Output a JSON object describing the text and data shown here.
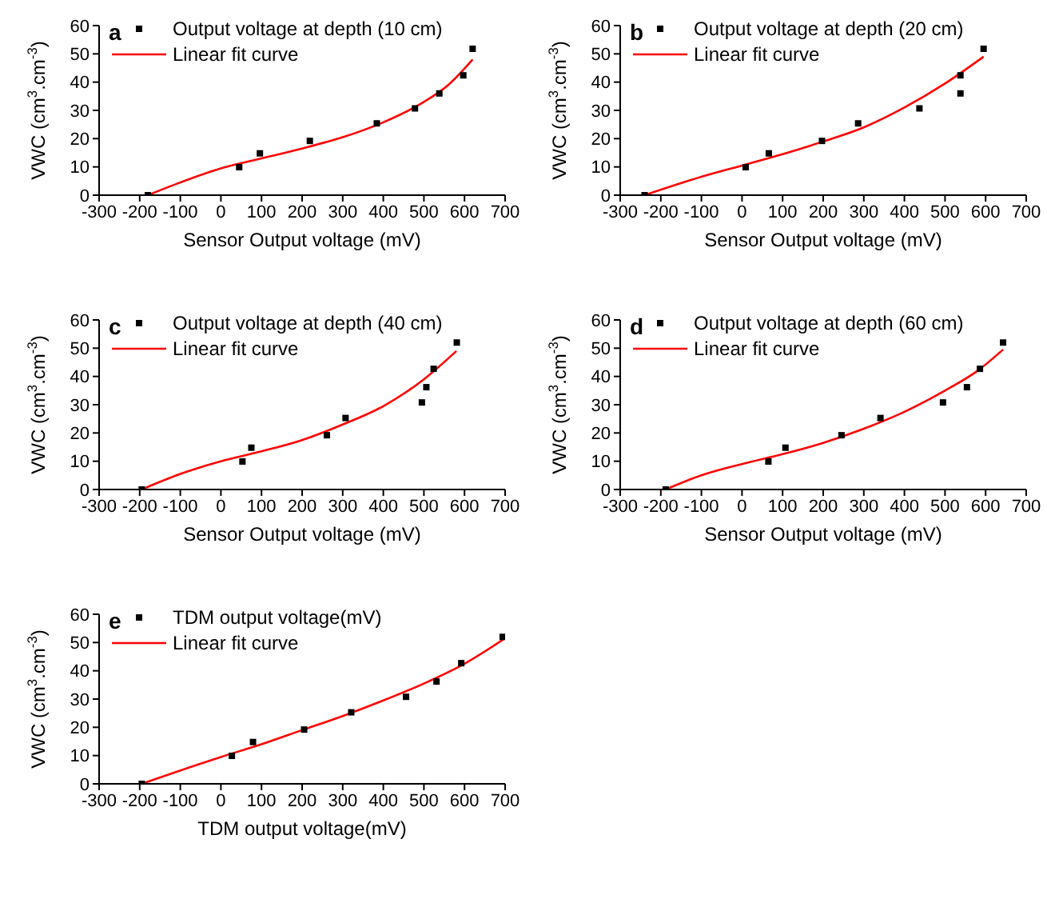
{
  "chart_data": [
    {
      "type": "scatter",
      "annotations": [
        "a"
      ],
      "xlabel": "Sensor Output voltage (mV)",
      "ylabel": "VWC (cm$^{3}$.cm$^{-3}$)",
      "xlim": [
        -300,
        700
      ],
      "xticks": [
        -300,
        -200,
        -100,
        0,
        100,
        200,
        300,
        400,
        500,
        600,
        700
      ],
      "ylim": [
        0,
        60
      ],
      "yticks": [
        0,
        10,
        20,
        30,
        40,
        50,
        60
      ],
      "grid": false,
      "legend": "top left",
      "series": [
        {
          "name": "Output voltage at depth (10 cm)",
          "marker": "square",
          "color": "#000000",
          "x": [
            -180,
            45,
            96,
            219,
            384,
            478,
            538,
            597,
            620
          ],
          "values": [
            0,
            9.9,
            14.8,
            19.2,
            25.4,
            30.7,
            36,
            42.4,
            51.8
          ]
        },
        {
          "name": "Linear fit curve",
          "type": "line",
          "marker": "none",
          "color": "#ff0000",
          "x": [
            -180,
            -100,
            0,
            100,
            200,
            300,
            400,
            500,
            560,
            620
          ],
          "values": [
            0,
            4.5,
            9.5,
            13,
            16.5,
            20.5,
            25.8,
            33,
            39,
            48
          ]
        }
      ]
    },
    {
      "type": "scatter",
      "annotations": [
        "b"
      ],
      "xlabel": "Sensor Output voltage (mV)",
      "ylabel": "VWC (cm$^{3}$.cm$^{-3}$)",
      "xlim": [
        -300,
        700
      ],
      "xticks": [
        -300,
        -200,
        -100,
        0,
        100,
        200,
        300,
        400,
        500,
        600,
        700
      ],
      "ylim": [
        0,
        60
      ],
      "yticks": [
        0,
        10,
        20,
        30,
        40,
        50,
        60
      ],
      "grid": false,
      "legend": "top left",
      "series": [
        {
          "name": "Output voltage at depth (20 cm)",
          "marker": "square",
          "color": "#000000",
          "x": [
            -240,
            9,
            66,
            197,
            286,
            437,
            538,
            538,
            595
          ],
          "values": [
            0,
            9.9,
            14.8,
            19.2,
            25.4,
            30.7,
            36,
            42.4,
            51.8
          ]
        },
        {
          "name": "Linear fit curve",
          "type": "line",
          "marker": "none",
          "color": "#ff0000",
          "x": [
            -240,
            -100,
            0,
            100,
            200,
            300,
            400,
            500,
            595
          ],
          "values": [
            0,
            6.5,
            10.5,
            14.5,
            19,
            24,
            31,
            39.5,
            49
          ]
        }
      ]
    },
    {
      "type": "scatter",
      "annotations": [
        "c"
      ],
      "xlabel": "Sensor Output voltage (mV)",
      "ylabel": "VWC (cm$^{3}$.cm$^{-3}$)",
      "xlim": [
        -300,
        700
      ],
      "xticks": [
        -300,
        -200,
        -100,
        0,
        100,
        200,
        300,
        400,
        500,
        600,
        700
      ],
      "ylim": [
        0,
        60
      ],
      "yticks": [
        0,
        10,
        20,
        30,
        40,
        50,
        60
      ],
      "grid": false,
      "legend": "top left",
      "series": [
        {
          "name": "Output voltage at depth (40 cm)",
          "marker": "square",
          "color": "#000000",
          "x": [
            -195,
            53,
            75,
            261,
            307,
            495,
            506,
            524,
            581
          ],
          "values": [
            0,
            9.9,
            14.8,
            19.2,
            25.3,
            30.8,
            36.2,
            42.7,
            52
          ]
        },
        {
          "name": "Linear fit curve",
          "type": "line",
          "marker": "none",
          "color": "#ff0000",
          "x": [
            -195,
            -100,
            0,
            100,
            200,
            300,
            400,
            500,
            580
          ],
          "values": [
            0,
            5.5,
            10,
            13.5,
            17.5,
            23,
            29.5,
            39,
            49
          ]
        }
      ]
    },
    {
      "type": "scatter",
      "annotations": [
        "d"
      ],
      "xlabel": "Sensor Output voltage (mV)",
      "ylabel": "VWC (cm$^{3}$.cm$^{-3}$)",
      "xlim": [
        -300,
        700
      ],
      "xticks": [
        -300,
        -200,
        -100,
        0,
        100,
        200,
        300,
        400,
        500,
        600,
        700
      ],
      "ylim": [
        0,
        60
      ],
      "yticks": [
        0,
        10,
        20,
        30,
        40,
        50,
        60
      ],
      "grid": false,
      "legend": "top left",
      "series": [
        {
          "name": "Output voltage at depth (60 cm)",
          "marker": "square",
          "color": "#000000",
          "x": [
            -188,
            65,
            107,
            245,
            341,
            495,
            554,
            586,
            643
          ],
          "values": [
            0,
            9.9,
            14.8,
            19.2,
            25.3,
            30.8,
            36.2,
            42.7,
            52
          ]
        },
        {
          "name": "Linear fit curve",
          "type": "line",
          "marker": "none",
          "color": "#ff0000",
          "x": [
            -188,
            -100,
            0,
            100,
            200,
            300,
            400,
            500,
            580,
            643
          ],
          "values": [
            0,
            5,
            9,
            12.5,
            16.5,
            21.5,
            27.5,
            35,
            42,
            49.5
          ]
        }
      ]
    },
    {
      "type": "scatter",
      "annotations": [
        "e"
      ],
      "xlabel": "TDM output voltage(mV)",
      "ylabel": "VWC (cm$^{3}$.cm$^{-3}$)",
      "xlim": [
        -300,
        700
      ],
      "xticks": [
        -300,
        -200,
        -100,
        0,
        100,
        200,
        300,
        400,
        500,
        600,
        700
      ],
      "ylim": [
        0,
        60
      ],
      "yticks": [
        0,
        10,
        20,
        30,
        40,
        50,
        60
      ],
      "grid": false,
      "legend": "top left",
      "series": [
        {
          "name": "TDM output voltage(mV)",
          "marker": "square",
          "color": "#000000",
          "x": [
            -195,
            27,
            79,
            205,
            321,
            456,
            531,
            592,
            694
          ],
          "values": [
            0,
            9.9,
            14.8,
            19.2,
            25.3,
            30.8,
            36.2,
            42.7,
            52
          ]
        },
        {
          "name": "Linear fit curve",
          "type": "line",
          "marker": "none",
          "color": "#ff0000",
          "x": [
            -195,
            0,
            100,
            200,
            300,
            400,
            500,
            600,
            700
          ],
          "values": [
            0,
            9.5,
            14,
            19,
            24,
            29.5,
            35.5,
            42.5,
            51.5
          ]
        }
      ]
    }
  ]
}
